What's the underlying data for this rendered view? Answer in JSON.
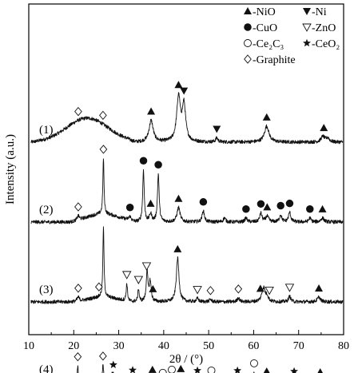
{
  "chart_data": {
    "type": "line",
    "xlabel": "2θ / (°)",
    "ylabel": "Intensity (a.u.)",
    "xlim": [
      10,
      80
    ],
    "xticks": [
      10,
      20,
      30,
      40,
      50,
      60,
      70,
      80
    ],
    "legend": {
      "placement": "top-right",
      "entries": [
        {
          "marker": "triangle-up-filled",
          "label": "-NiO"
        },
        {
          "marker": "triangle-down-filled",
          "label": "-Ni"
        },
        {
          "marker": "circle-filled",
          "label": "-CuO"
        },
        {
          "marker": "triangle-down-open",
          "label": "-ZnO"
        },
        {
          "marker": "circle-open",
          "label": "-Ce₂C₃"
        },
        {
          "marker": "star-filled",
          "label": "-CeO₂"
        },
        {
          "marker": "diamond-open",
          "label": "-Graphite"
        }
      ]
    },
    "series": [
      {
        "name": "(1)",
        "baseline": 1.0,
        "humps": [
          {
            "x0": 10,
            "x1": 34,
            "c": 23,
            "w": 4.6,
            "h": 0.3
          }
        ],
        "peaks": [
          {
            "x": 37.2,
            "h": 0.27,
            "w": 0.55
          },
          {
            "x": 43.3,
            "h": 0.55,
            "w": 0.5
          },
          {
            "x": 44.5,
            "h": 0.45,
            "w": 0.45
          },
          {
            "x": 51.8,
            "h": 0.05,
            "w": 0.3
          },
          {
            "x": 62.9,
            "h": 0.2,
            "w": 0.6
          },
          {
            "x": 75.4,
            "h": 0.07,
            "w": 0.5
          },
          {
            "x": 76.5,
            "h": 0.05,
            "w": 0.4
          }
        ],
        "markers": [
          {
            "x": 21.0,
            "marker": "diamond-open"
          },
          {
            "x": 26.5,
            "marker": "diamond-open"
          },
          {
            "x": 37.2,
            "marker": "triangle-up-filled"
          },
          {
            "x": 43.3,
            "marker": "triangle-up-filled"
          },
          {
            "x": 44.5,
            "marker": "triangle-down-filled"
          },
          {
            "x": 51.8,
            "marker": "triangle-down-filled"
          },
          {
            "x": 62.9,
            "marker": "triangle-up-filled"
          },
          {
            "x": 75.6,
            "marker": "triangle-up-filled"
          }
        ]
      },
      {
        "name": "(2)",
        "baseline": 0.0,
        "humps": [
          {
            "x0": 19,
            "x1": 34,
            "c": 26.5,
            "w": 3.5,
            "h": 0.1
          }
        ],
        "peaks": [
          {
            "x": 21.0,
            "h": 0.05,
            "w": 0.3
          },
          {
            "x": 26.6,
            "h": 0.7,
            "w": 0.15
          },
          {
            "x": 32.5,
            "h": 0.05,
            "w": 0.3
          },
          {
            "x": 35.5,
            "h": 0.65,
            "w": 0.2
          },
          {
            "x": 37.1,
            "h": 0.1,
            "w": 0.3
          },
          {
            "x": 38.8,
            "h": 0.6,
            "w": 0.22
          },
          {
            "x": 43.3,
            "h": 0.18,
            "w": 0.4
          },
          {
            "x": 48.8,
            "h": 0.14,
            "w": 0.3
          },
          {
            "x": 53.5,
            "h": 0.05,
            "w": 0.3
          },
          {
            "x": 58.3,
            "h": 0.05,
            "w": 0.3
          },
          {
            "x": 61.6,
            "h": 0.11,
            "w": 0.3
          },
          {
            "x": 63.0,
            "h": 0.07,
            "w": 0.4
          },
          {
            "x": 66.0,
            "h": 0.09,
            "w": 0.3
          },
          {
            "x": 68.0,
            "h": 0.12,
            "w": 0.3
          },
          {
            "x": 72.5,
            "h": 0.05,
            "w": 0.3
          },
          {
            "x": 75.3,
            "h": 0.05,
            "w": 0.4
          }
        ],
        "markers": [
          {
            "x": 21.0,
            "marker": "diamond-open"
          },
          {
            "x": 26.6,
            "marker": "diamond-open"
          },
          {
            "x": 32.5,
            "marker": "circle-filled"
          },
          {
            "x": 35.5,
            "marker": "circle-filled"
          },
          {
            "x": 37.1,
            "marker": "triangle-up-filled"
          },
          {
            "x": 38.8,
            "marker": "circle-filled"
          },
          {
            "x": 43.3,
            "marker": "triangle-up-filled"
          },
          {
            "x": 48.8,
            "marker": "circle-filled"
          },
          {
            "x": 58.3,
            "marker": "circle-filled"
          },
          {
            "x": 61.6,
            "marker": "circle-filled"
          },
          {
            "x": 63.0,
            "marker": "triangle-up-filled"
          },
          {
            "x": 66.0,
            "marker": "circle-filled"
          },
          {
            "x": 68.0,
            "marker": "circle-filled"
          },
          {
            "x": 72.5,
            "marker": "circle-filled"
          },
          {
            "x": 75.3,
            "marker": "triangle-up-filled"
          }
        ]
      },
      {
        "name": "(3)",
        "baseline": -1.0,
        "humps": [
          {
            "x0": 19,
            "x1": 33,
            "c": 26.5,
            "w": 3.0,
            "h": 0.06
          }
        ],
        "peaks": [
          {
            "x": 21.0,
            "h": 0.05,
            "w": 0.3
          },
          {
            "x": 26.6,
            "h": 0.88,
            "w": 0.15
          },
          {
            "x": 31.8,
            "h": 0.22,
            "w": 0.18
          },
          {
            "x": 34.4,
            "h": 0.16,
            "w": 0.18
          },
          {
            "x": 36.3,
            "h": 0.38,
            "w": 0.22
          },
          {
            "x": 37.0,
            "h": 0.25,
            "w": 0.25
          },
          {
            "x": 43.1,
            "h": 0.55,
            "w": 0.35
          },
          {
            "x": 47.5,
            "h": 0.04,
            "w": 0.3
          },
          {
            "x": 50.4,
            "h": 0.03,
            "w": 0.3
          },
          {
            "x": 56.6,
            "h": 0.05,
            "w": 0.3
          },
          {
            "x": 62.2,
            "h": 0.18,
            "w": 0.45
          },
          {
            "x": 63.0,
            "h": 0.06,
            "w": 0.3
          },
          {
            "x": 68.0,
            "h": 0.07,
            "w": 0.3
          },
          {
            "x": 74.5,
            "h": 0.06,
            "w": 0.4
          }
        ],
        "markers": [
          {
            "x": 21.0,
            "marker": "diamond-open"
          },
          {
            "x": 25.6,
            "marker": "diamond-open"
          },
          {
            "x": 31.8,
            "marker": "triangle-down-open"
          },
          {
            "x": 34.4,
            "marker": "triangle-down-open"
          },
          {
            "x": 36.2,
            "marker": "triangle-down-open"
          },
          {
            "x": 37.6,
            "marker": "triangle-up-filled"
          },
          {
            "x": 43.1,
            "marker": "triangle-up-filled"
          },
          {
            "x": 47.5,
            "marker": "triangle-down-open"
          },
          {
            "x": 50.4,
            "marker": "diamond-open"
          },
          {
            "x": 56.6,
            "marker": "diamond-open"
          },
          {
            "x": 61.5,
            "marker": "triangle-up-filled"
          },
          {
            "x": 63.5,
            "marker": "triangle-down-open"
          },
          {
            "x": 68.0,
            "marker": "triangle-down-open"
          },
          {
            "x": 74.5,
            "marker": "triangle-up-filled"
          }
        ]
      },
      {
        "name": "(4)",
        "baseline": -2.0,
        "humps": [
          {
            "x0": 20,
            "x1": 34,
            "c": 27.5,
            "w": 3.5,
            "h": 0.04
          }
        ],
        "peaks": [
          {
            "x": 20.9,
            "h": 0.2,
            "w": 0.15
          },
          {
            "x": 26.5,
            "h": 0.17,
            "w": 0.15
          },
          {
            "x": 28.6,
            "h": 0.08,
            "w": 0.4
          },
          {
            "x": 33.1,
            "h": 0.03,
            "w": 0.4
          },
          {
            "x": 37.5,
            "h": 0.04,
            "w": 0.3
          },
          {
            "x": 41.8,
            "h": 0.04,
            "w": 0.3
          },
          {
            "x": 43.8,
            "h": 0.05,
            "w": 0.3
          },
          {
            "x": 47.5,
            "h": 0.03,
            "w": 0.4
          },
          {
            "x": 50.6,
            "h": 0.03,
            "w": 0.3
          },
          {
            "x": 56.4,
            "h": 0.03,
            "w": 0.4
          },
          {
            "x": 60.1,
            "h": 0.12,
            "w": 0.12
          },
          {
            "x": 62.9,
            "h": 0.02,
            "w": 0.3
          },
          {
            "x": 69.0,
            "h": 0.02,
            "w": 0.4
          },
          {
            "x": 74.5,
            "h": 0.02,
            "w": 0.3
          }
        ],
        "markers": [
          {
            "x": 20.9,
            "marker": "diamond-open"
          },
          {
            "x": 26.5,
            "marker": "diamond-open"
          },
          {
            "x": 28.8,
            "marker": "star-filled"
          },
          {
            "x": 33.1,
            "marker": "star-filled"
          },
          {
            "x": 37.5,
            "marker": "triangle-up-filled"
          },
          {
            "x": 39.8,
            "marker": "circle-open"
          },
          {
            "x": 41.8,
            "marker": "circle-open"
          },
          {
            "x": 43.8,
            "marker": "triangle-up-filled"
          },
          {
            "x": 47.5,
            "marker": "star-filled"
          },
          {
            "x": 50.6,
            "marker": "circle-open"
          },
          {
            "x": 56.4,
            "marker": "star-filled"
          },
          {
            "x": 60.1,
            "marker": "circle-open"
          },
          {
            "x": 62.9,
            "marker": "triangle-up-filled"
          },
          {
            "x": 69.0,
            "marker": "star-filled"
          },
          {
            "x": 74.8,
            "marker": "triangle-up-filled"
          }
        ]
      }
    ]
  }
}
